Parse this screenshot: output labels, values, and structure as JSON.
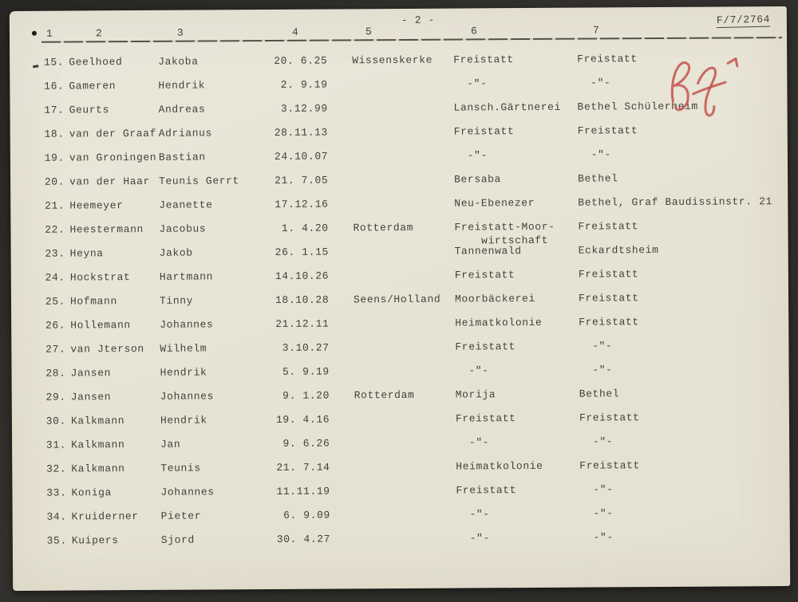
{
  "page": {
    "page_number": "- 2 -",
    "doc_ref": "F/7/2764"
  },
  "colors": {
    "paper": "#e8e4d6",
    "ink": "#454139",
    "red_annotation": "#c4524c",
    "background": "#2e2c29"
  },
  "table": {
    "column_headers": [
      "1",
      "2",
      "3",
      "4",
      "5",
      "6",
      "7"
    ],
    "rows": [
      {
        "num": "15.",
        "surname": "Geelhoed",
        "firstname": "Jakoba",
        "date": "20. 6.25",
        "place": "Wissenskerke",
        "institution": "Freistatt",
        "residence": "Freistatt"
      },
      {
        "num": "16.",
        "surname": "Gameren",
        "firstname": "Hendrik",
        "date": " 2. 9.19",
        "place": "",
        "institution": "  -\"-",
        "residence": "  -\"-"
      },
      {
        "num": "17.",
        "surname": "Geurts",
        "firstname": "Andreas",
        "date": " 3.12.99",
        "place": "",
        "institution": "Lansch.Gärtnerei",
        "residence": "Bethel Schülerheim"
      },
      {
        "num": "18.",
        "surname": "van der Graaf",
        "firstname": "Adrianus",
        "date": "28.11.13",
        "place": "",
        "institution": "Freistatt",
        "residence": "Freistatt"
      },
      {
        "num": "19.",
        "surname": "van Groningen",
        "firstname": "Bastian",
        "date": "24.10.07",
        "place": "",
        "institution": "  -\"-",
        "residence": "  -\"-"
      },
      {
        "num": "20.",
        "surname": "van der Haar",
        "firstname": "Teunis Gerrt",
        "date": "21. 7.05",
        "place": "",
        "institution": "Bersaba",
        "residence": "Bethel"
      },
      {
        "num": "21.",
        "surname": "Heemeyer",
        "firstname": "Jeanette",
        "date": "17.12.16",
        "place": "",
        "institution": "Neu-Ebenezer",
        "residence": "Bethel, Graf Baudissinstr. 21"
      },
      {
        "num": "22.",
        "surname": "Heestermann",
        "firstname": "Jacobus",
        "date": " 1. 4.20",
        "place": "Rotterdam",
        "institution": "Freistatt-Moor-\n    wirtschaft",
        "residence": "Freistatt"
      },
      {
        "num": "23.",
        "surname": "Heyna",
        "firstname": "Jakob",
        "date": "26. 1.15",
        "place": "",
        "institution": "Tannenwald",
        "residence": "Eckardtsheim"
      },
      {
        "num": "24.",
        "surname": "Hockstrat",
        "firstname": "Hartmann",
        "date": "14.10.26",
        "place": "",
        "institution": "Freistatt",
        "residence": "Freistatt"
      },
      {
        "num": "25.",
        "surname": "Hofmann",
        "firstname": "Tinny",
        "date": "18.10.28",
        "place": "Seens/Holland",
        "institution": "Moorbäckerei",
        "residence": "Freistatt"
      },
      {
        "num": "26.",
        "surname": "Hollemann",
        "firstname": "Johannes",
        "date": "21.12.11",
        "place": "",
        "institution": "Heimatkolonie",
        "residence": "Freistatt"
      },
      {
        "num": "27.",
        "surname": "van Jterson",
        "firstname": "Wilhelm",
        "date": " 3.10.27",
        "place": "",
        "institution": "Freistatt",
        "residence": "  -\"-"
      },
      {
        "num": "28.",
        "surname": "Jansen",
        "firstname": "Hendrik",
        "date": " 5. 9.19",
        "place": "",
        "institution": "  -\"-",
        "residence": "  -\"-"
      },
      {
        "num": "29.",
        "surname": "Jansen",
        "firstname": "Johannes",
        "date": " 9. 1.20",
        "place": "Rotterdam",
        "institution": "Morija",
        "residence": "Bethel"
      },
      {
        "num": "30.",
        "surname": "Kalkmann",
        "firstname": "Hendrik",
        "date": "19. 4.16",
        "place": "",
        "institution": "Freistatt",
        "residence": "Freistatt"
      },
      {
        "num": "31.",
        "surname": "Kalkmann",
        "firstname": "Jan",
        "date": " 9. 6.26",
        "place": "",
        "institution": "  -\"-",
        "residence": "  -\"-"
      },
      {
        "num": "32.",
        "surname": "Kalkmann",
        "firstname": "Teunis",
        "date": "21. 7.14",
        "place": "",
        "institution": "Heimatkolonie",
        "residence": "Freistatt"
      },
      {
        "num": "33.",
        "surname": "Koniga",
        "firstname": "Johannes",
        "date": "11.11.19",
        "place": "",
        "institution": "Freistatt",
        "residence": "  -\"-"
      },
      {
        "num": "34.",
        "surname": "Kruiderner",
        "firstname": "Pieter",
        "date": " 6. 9.09",
        "place": "",
        "institution": "  -\"-",
        "residence": "  -\"-"
      },
      {
        "num": "35.",
        "surname": "Kuipers",
        "firstname": "Sjord",
        "date": "30. 4.27",
        "place": "",
        "institution": "  -\"-",
        "residence": "  -\"-"
      }
    ]
  }
}
